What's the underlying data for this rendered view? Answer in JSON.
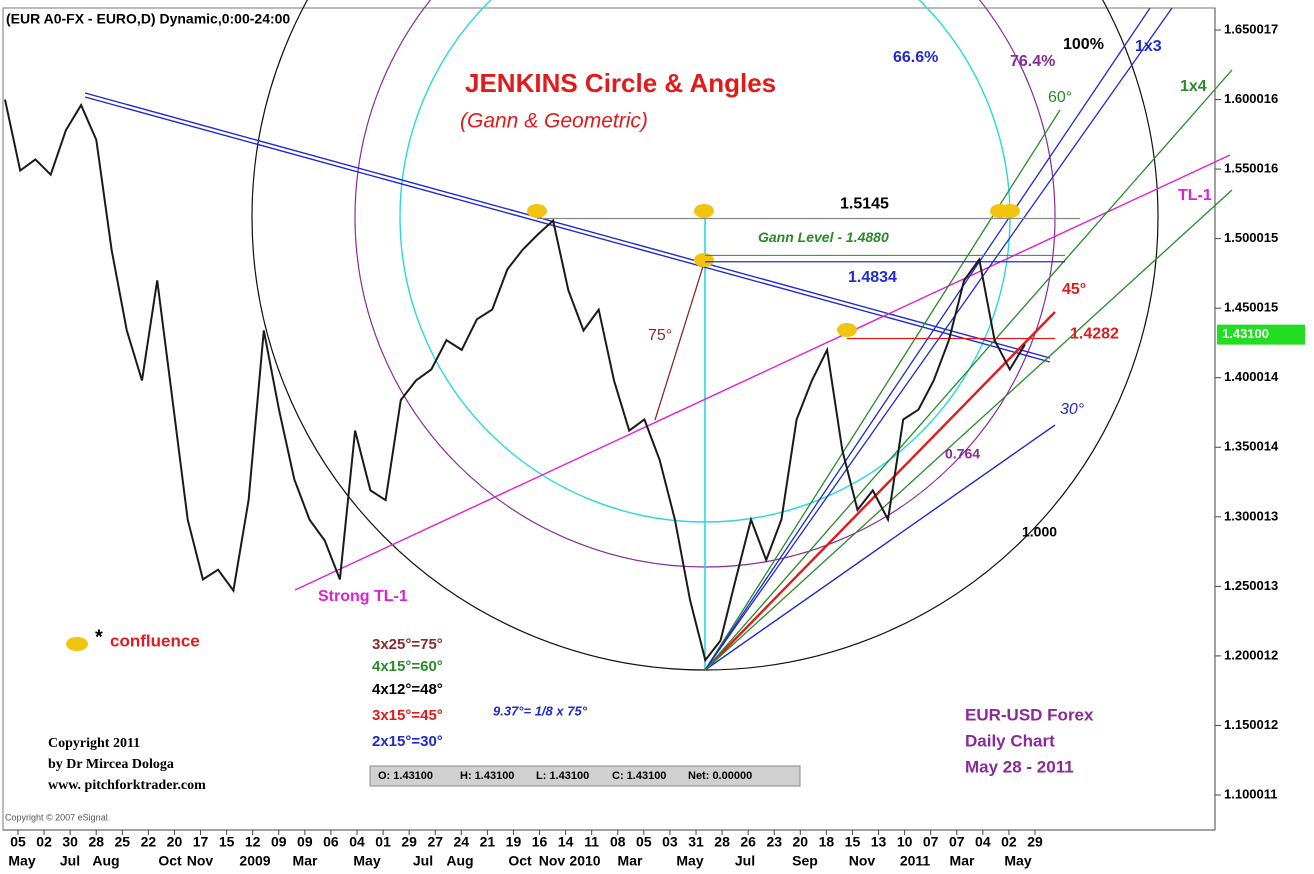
{
  "chart_data": {
    "type": "line",
    "header": "(EUR A0-FX - EURO,D) Dynamic,0:00-24:00",
    "color": "#1a1a1a",
    "values": [
      1.6,
      1.549,
      1.557,
      1.546,
      1.578,
      1.596,
      1.571,
      1.492,
      1.434,
      1.398,
      1.47,
      1.384,
      1.298,
      1.255,
      1.262,
      1.247,
      1.312,
      1.434,
      1.377,
      1.327,
      1.298,
      1.283,
      1.255,
      1.362,
      1.319,
      1.312,
      1.384,
      1.398,
      1.406,
      1.427,
      1.42,
      1.442,
      1.449,
      1.478,
      1.492,
      1.503,
      1.513,
      1.463,
      1.434,
      1.449,
      1.398,
      1.362,
      1.37,
      1.341,
      1.298,
      1.24,
      1.197,
      1.211,
      1.255,
      1.298,
      1.269,
      1.298,
      1.37,
      1.398,
      1.42,
      1.348,
      1.305,
      1.319,
      1.298,
      1.37,
      1.377,
      1.398,
      1.427,
      1.47,
      1.485,
      1.427,
      1.406,
      1.424
    ],
    "ylim": [
      1.100011,
      1.650017
    ],
    "yticks": [
      1.650017,
      1.600016,
      1.550016,
      1.500015,
      1.450015,
      1.400014,
      1.350014,
      1.300013,
      1.250013,
      1.200012,
      1.150012,
      1.100011
    ],
    "x_day_labels": [
      "05",
      "02",
      "30",
      "28",
      "25",
      "22",
      "20",
      "17",
      "15",
      "12",
      "09",
      "09",
      "06",
      "04",
      "01",
      "29",
      "27",
      "24",
      "21",
      "19",
      "16",
      "14",
      "11",
      "08",
      "05",
      "03",
      "31",
      "28",
      "26",
      "23",
      "20",
      "18",
      "15",
      "13",
      "10",
      "07",
      "07",
      "04",
      "02",
      "29"
    ],
    "x_period_labels": [
      "May",
      "Jul",
      "Aug",
      "Oct",
      "Nov",
      "2009",
      "Mar",
      "May",
      "Jul",
      "Aug",
      "Oct",
      "Nov",
      "2010",
      "Mar",
      "May",
      "Jul",
      "Sep",
      "Nov",
      "2011",
      "Mar",
      "May"
    ],
    "last_price": {
      "value": 1.431,
      "label": "1.43100"
    },
    "levels": [
      {
        "value": 1.5145,
        "label": "1.5145",
        "color": "#000000"
      },
      {
        "value": 1.4834,
        "label": "1.4834",
        "color": "#1f2bd1"
      },
      {
        "value": 1.4282,
        "label": "1.4282",
        "color": "#e11b1b"
      }
    ],
    "gann_level": {
      "value": 1.488,
      "label": "Gann Level - 1.4880",
      "color": "#2a8a2a"
    },
    "annotations": [
      {
        "text": "JENKINS Circle & Angles",
        "color": "#e11b1b"
      },
      {
        "text": "(Gann & Geometric)",
        "color": "#e11b1b"
      },
      {
        "text": "66.6%",
        "color": "#1f2bd1"
      },
      {
        "text": "76.4%",
        "color": "#8a2a9a"
      },
      {
        "text": "100%",
        "color": "#000000"
      },
      {
        "text": "1x3",
        "color": "#1f2bd1"
      },
      {
        "text": "1x4",
        "color": "#2a8a2a"
      },
      {
        "text": "60°",
        "color": "#2a8a2a"
      },
      {
        "text": "TL-1",
        "color": "#e020d0"
      },
      {
        "text": "45°",
        "color": "#e11b1b"
      },
      {
        "text": "75°",
        "color": "#8b2a2a"
      },
      {
        "text": "30°",
        "color": "#1f2bd1"
      },
      {
        "text": "0.764",
        "color": "#8a2a9a"
      },
      {
        "text": "1.000",
        "color": "#000000"
      },
      {
        "text": "Strong TL-1",
        "color": "#e020d0"
      },
      {
        "text": "*",
        "color": "#000000"
      },
      {
        "text": "confluence",
        "color": "#e11b1b"
      },
      {
        "text": "3x25°=75°",
        "color": "#8b2a2a"
      },
      {
        "text": "4x15°=60°",
        "color": "#2a8a2a"
      },
      {
        "text": "4x12°=48°",
        "color": "#000000"
      },
      {
        "text": "3x15°=45°",
        "color": "#e11b1b"
      },
      {
        "text": "2x15°=30°",
        "color": "#1f2bd1"
      },
      {
        "text": "9.37°= 1/8 x 75°",
        "color": "#1f2bd1"
      },
      {
        "text": "EUR-USD Forex",
        "color": "#8a2a9a"
      },
      {
        "text": "Daily Chart",
        "color": "#8a2a9a"
      },
      {
        "text": "May 28 - 2011",
        "color": "#8a2a9a"
      },
      {
        "text": "Copyright 2011",
        "color": "#000000"
      },
      {
        "text": "by Dr Mircea Dologa",
        "color": "#000000"
      },
      {
        "text": "www. pitchforktrader.com",
        "color": "#000000"
      },
      {
        "text": "Copyright © 2007 eSignal.",
        "color": "#555555"
      }
    ],
    "ohlc_bar": [
      "O: 1.43100",
      "H: 1.43100",
      "L: 1.43100",
      "C: 1.43100",
      "Net: 0.00000"
    ]
  }
}
